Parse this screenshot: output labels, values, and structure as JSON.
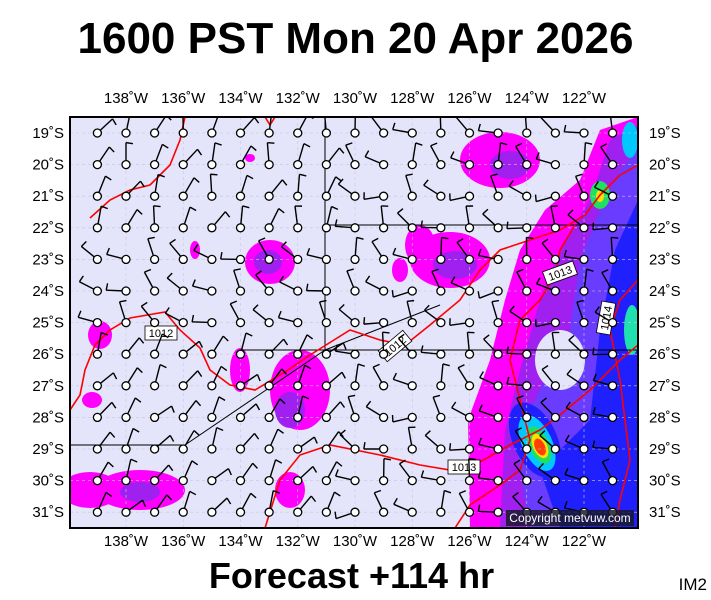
{
  "header": {
    "title": "1600 PST Mon 20 Apr 2026"
  },
  "footer": {
    "subtitle": "Forecast +114 hr",
    "image_id": "IM2"
  },
  "map": {
    "copyright": "Copyright metvuw.com",
    "lon_labels": [
      "138˚W",
      "136˚W",
      "134˚W",
      "132˚W",
      "130˚W",
      "128˚W",
      "126˚W",
      "124˚W",
      "122˚W"
    ],
    "lat_labels": [
      "19˚S",
      "20˚S",
      "21˚S",
      "22˚S",
      "23˚S",
      "24˚S",
      "25˚S",
      "26˚S",
      "27˚S",
      "28˚S",
      "29˚S",
      "30˚S",
      "31˚S"
    ],
    "isobar_labels": [
      "1012",
      "1012",
      "1013",
      "1013",
      "1014"
    ],
    "colors": {
      "background": "#e4e4fa",
      "isobar": "#ff0000",
      "rain_light": "#ff00ff",
      "rain_mod": "#a020f0",
      "rain_heavy": "#2020ff",
      "rain_extreme": "#ff4000"
    }
  }
}
